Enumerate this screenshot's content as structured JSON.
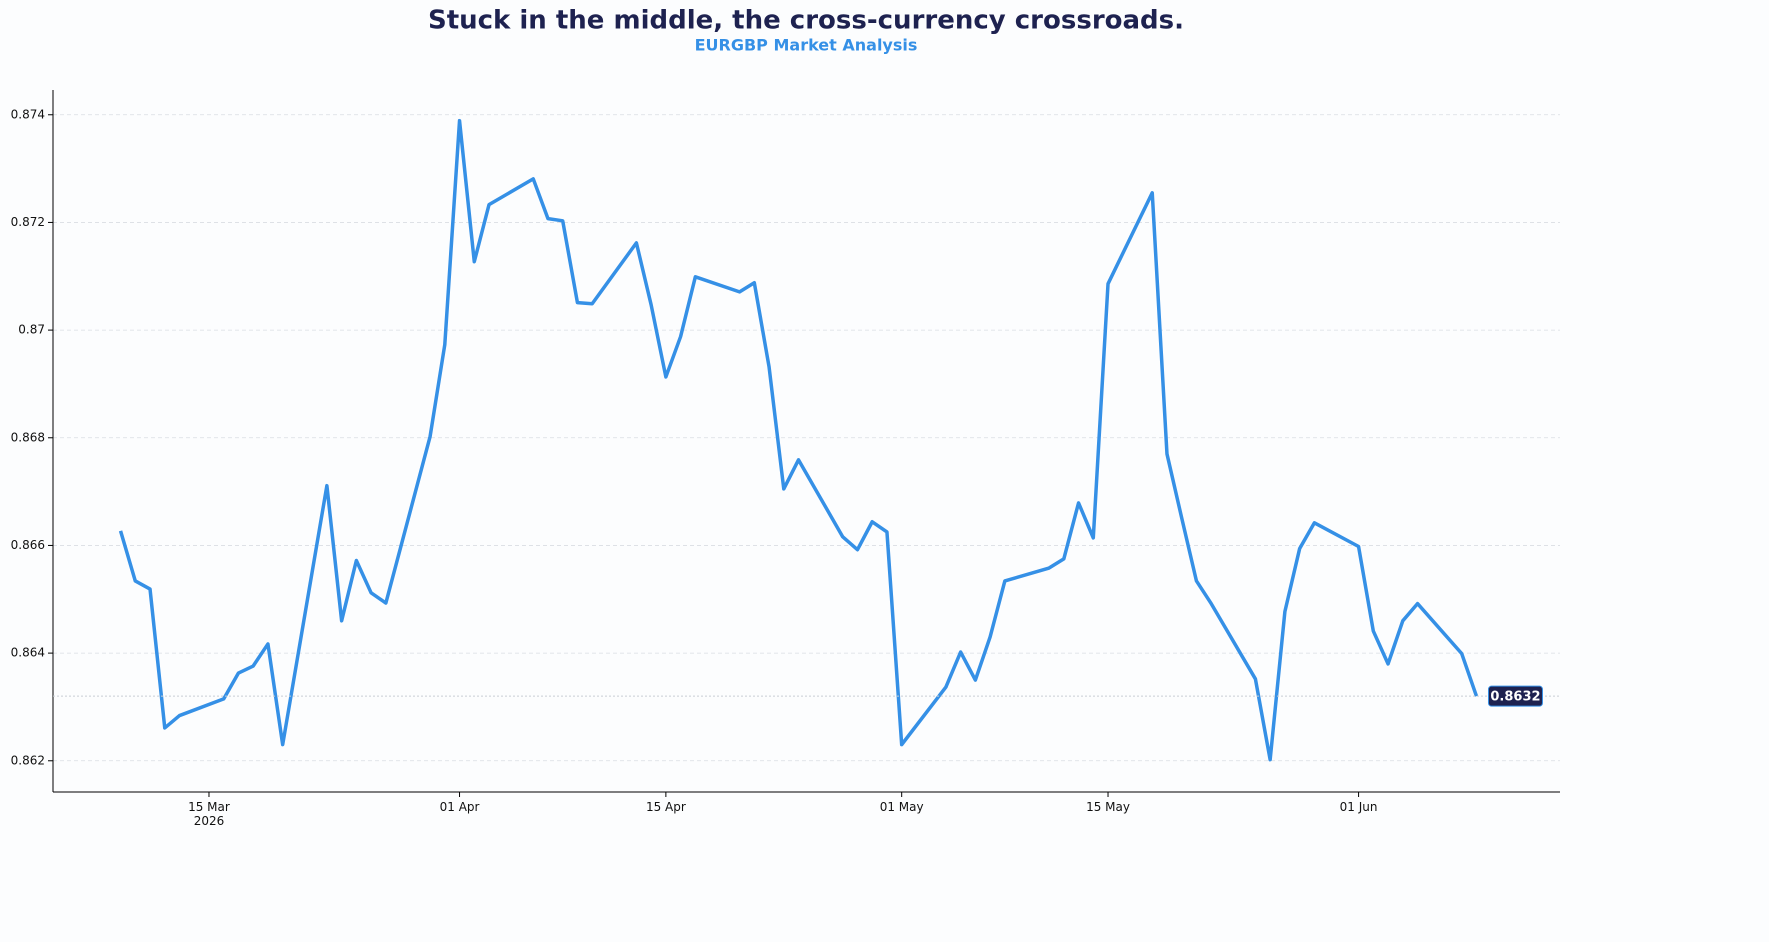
{
  "chart_data": {
    "type": "line",
    "title": "Stuck in the middle, the cross-currency crossroads.",
    "subtitle": "EURGBP Market Analysis",
    "x": [
      "2026-03-09",
      "2026-03-10",
      "2026-03-11",
      "2026-03-12",
      "2026-03-13",
      "2026-03-16",
      "2026-03-17",
      "2026-03-18",
      "2026-03-19",
      "2026-03-20",
      "2026-03-23",
      "2026-03-24",
      "2026-03-25",
      "2026-03-26",
      "2026-03-27",
      "2026-03-30",
      "2026-03-31",
      "2026-04-01",
      "2026-04-02",
      "2026-04-03",
      "2026-04-06",
      "2026-04-07",
      "2026-04-08",
      "2026-04-09",
      "2026-04-10",
      "2026-04-13",
      "2026-04-14",
      "2026-04-15",
      "2026-04-16",
      "2026-04-17",
      "2026-04-20",
      "2026-04-21",
      "2026-04-22",
      "2026-04-23",
      "2026-04-24",
      "2026-04-27",
      "2026-04-28",
      "2026-04-29",
      "2026-04-30",
      "2026-05-01",
      "2026-05-04",
      "2026-05-05",
      "2026-05-06",
      "2026-05-07",
      "2026-05-08",
      "2026-05-11",
      "2026-05-12",
      "2026-05-13",
      "2026-05-14",
      "2026-05-15",
      "2026-05-18",
      "2026-05-19",
      "2026-05-20",
      "2026-05-21",
      "2026-05-22",
      "2026-05-25",
      "2026-05-26",
      "2026-05-27",
      "2026-05-28",
      "2026-05-29",
      "2026-06-01",
      "2026-06-02",
      "2026-06-03",
      "2026-06-04",
      "2026-06-05",
      "2026-06-08",
      "2026-06-09"
    ],
    "series": [
      {
        "name": "EURGBP",
        "color": "#3590e6",
        "values": [
          0.86627,
          0.86534,
          0.86519,
          0.86261,
          0.86284,
          0.86315,
          0.86363,
          0.86376,
          0.86417,
          0.8623,
          0.86711,
          0.8646,
          0.86572,
          0.86512,
          0.86493,
          0.86802,
          0.86973,
          0.87389,
          0.87127,
          0.87233,
          0.87281,
          0.87207,
          0.87203,
          0.87051,
          0.87049,
          0.87162,
          0.87047,
          0.86913,
          0.86988,
          0.87099,
          0.87071,
          0.87088,
          0.86932,
          0.86705,
          0.86759,
          0.86616,
          0.86592,
          0.86644,
          0.86625,
          0.8623,
          0.86337,
          0.86402,
          0.8635,
          0.8643,
          0.86534,
          0.86558,
          0.86575,
          0.86679,
          0.86614,
          0.87086,
          0.87255,
          0.8677,
          0.86651,
          0.86534,
          0.86492,
          0.86352,
          0.86202,
          0.86477,
          0.86594,
          0.86642,
          0.86598,
          0.86441,
          0.8638,
          0.8646,
          0.86492,
          0.86399,
          0.8632
        ]
      }
    ],
    "last_value_label": "0.8632",
    "xlim": [
      "2026-03-04T10:00",
      "2026-06-14T16:00"
    ],
    "xticks": [
      {
        "value": "2026-03-15",
        "label": "15 Mar\n2026"
      },
      {
        "value": "2026-04-01",
        "label": "01 Apr"
      },
      {
        "value": "2026-04-15",
        "label": "15 Apr"
      },
      {
        "value": "2026-05-01",
        "label": "01 May"
      },
      {
        "value": "2026-05-15",
        "label": "15 May"
      },
      {
        "value": "2026-06-01",
        "label": "01 Jun"
      }
    ],
    "ylim": [
      0.86142,
      0.87446
    ],
    "yticks": [
      0.862,
      0.864,
      0.866,
      0.868,
      0.87,
      0.872,
      0.874
    ],
    "grid": true
  }
}
